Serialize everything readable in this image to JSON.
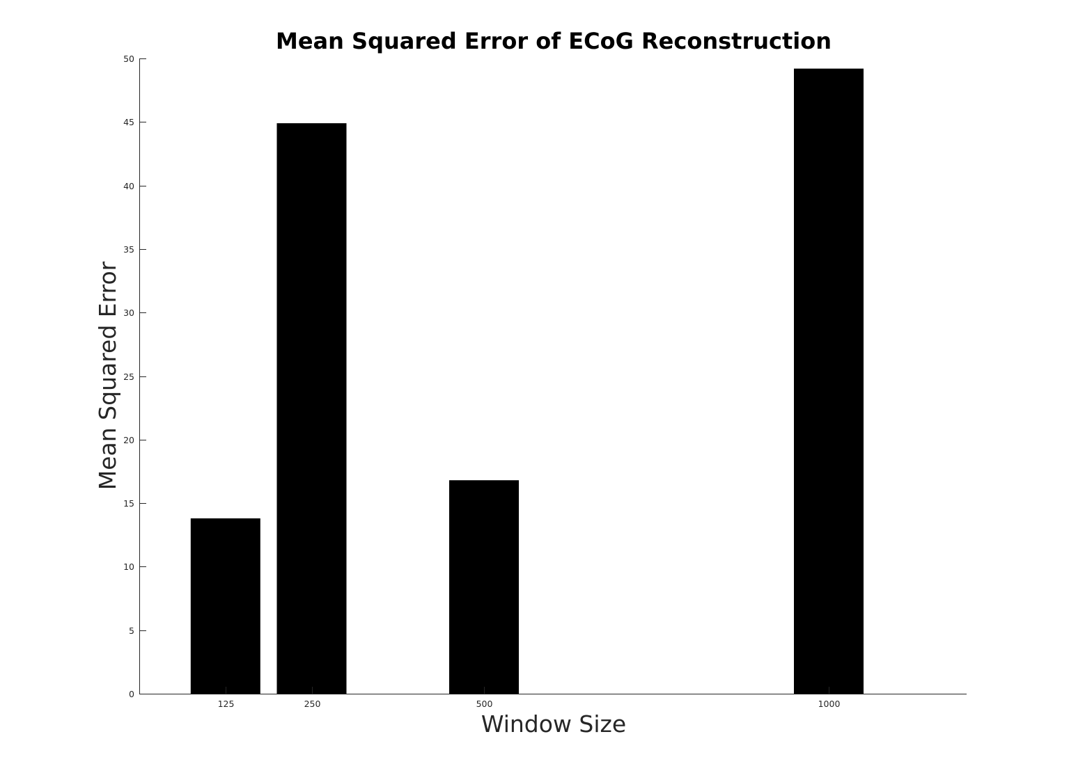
{
  "chart_data": {
    "type": "bar",
    "title": "Mean Squared Error of ECoG Reconstruction",
    "xlabel": "Window Size",
    "ylabel": "Mean Squared Error",
    "x": [
      125,
      250,
      500,
      1000
    ],
    "x_tick_labels": [
      "125",
      "250",
      "500",
      "1000"
    ],
    "xlim": [
      0,
      1200
    ],
    "values": [
      13.8,
      44.9,
      16.8,
      49.2
    ],
    "ylim": [
      0,
      50
    ],
    "y_ticks": [
      0,
      5,
      10,
      15,
      20,
      25,
      30,
      35,
      40,
      45,
      50
    ],
    "bar_color": "#000000",
    "grid": false,
    "legend": "none"
  }
}
